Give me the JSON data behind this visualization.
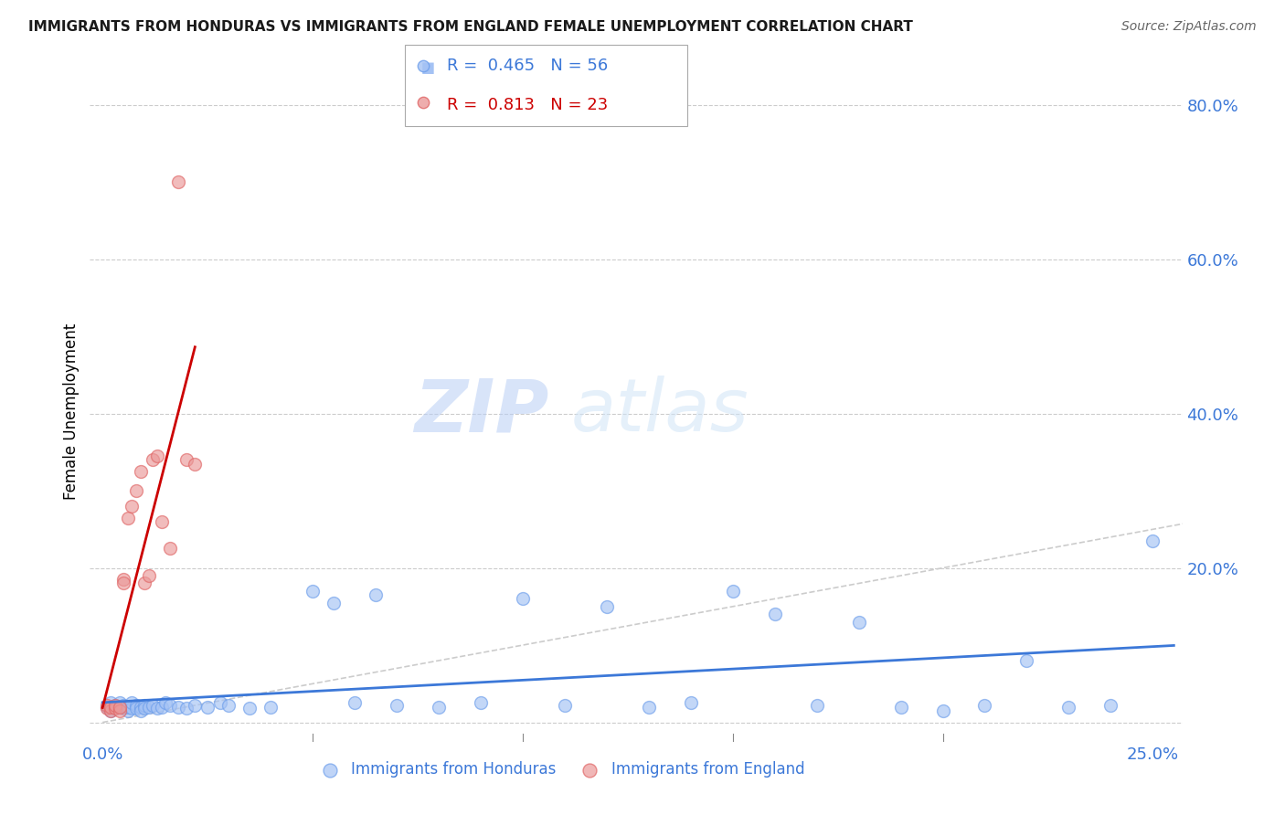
{
  "title": "IMMIGRANTS FROM HONDURAS VS IMMIGRANTS FROM ENGLAND FEMALE UNEMPLOYMENT CORRELATION CHART",
  "source": "Source: ZipAtlas.com",
  "ylabel": "Female Unemployment",
  "color_honduras": "#a4c2f4",
  "color_england": "#ea9999",
  "edge_honduras": "#6d9eeb",
  "edge_england": "#e06666",
  "trendline_color_honduras": "#3c78d8",
  "trendline_color_england": "#cc0000",
  "diagonal_color": "#cccccc",
  "R_honduras": 0.465,
  "N_honduras": 56,
  "R_england": 0.813,
  "N_england": 23,
  "xlim": [
    0.0,
    0.25
  ],
  "ylim": [
    0.0,
    0.8
  ],
  "yticks": [
    0.0,
    0.2,
    0.4,
    0.6,
    0.8
  ],
  "yticklabels": [
    "",
    "20.0%",
    "40.0%",
    "60.0%",
    "80.0%"
  ],
  "xtick_left": "0.0%",
  "xtick_right": "25.0%",
  "watermark_zip": "ZIP",
  "watermark_atlas": "atlas",
  "legend_label_honduras": "Immigrants from Honduras",
  "legend_label_england": "Immigrants from England",
  "honduras_x": [
    0.001,
    0.002,
    0.002,
    0.003,
    0.003,
    0.004,
    0.004,
    0.005,
    0.005,
    0.006,
    0.006,
    0.007,
    0.007,
    0.008,
    0.008,
    0.009,
    0.009,
    0.01,
    0.01,
    0.011,
    0.012,
    0.013,
    0.014,
    0.015,
    0.016,
    0.018,
    0.02,
    0.022,
    0.025,
    0.028,
    0.03,
    0.035,
    0.04,
    0.05,
    0.055,
    0.06,
    0.065,
    0.07,
    0.08,
    0.09,
    0.1,
    0.11,
    0.12,
    0.13,
    0.14,
    0.15,
    0.16,
    0.17,
    0.18,
    0.19,
    0.2,
    0.21,
    0.22,
    0.23,
    0.24,
    0.25
  ],
  "honduras_y": [
    0.02,
    0.025,
    0.015,
    0.022,
    0.018,
    0.02,
    0.025,
    0.018,
    0.022,
    0.015,
    0.02,
    0.018,
    0.025,
    0.022,
    0.018,
    0.02,
    0.015,
    0.022,
    0.018,
    0.02,
    0.022,
    0.018,
    0.02,
    0.025,
    0.022,
    0.02,
    0.018,
    0.022,
    0.02,
    0.025,
    0.022,
    0.018,
    0.02,
    0.17,
    0.155,
    0.025,
    0.165,
    0.022,
    0.02,
    0.025,
    0.16,
    0.022,
    0.15,
    0.02,
    0.025,
    0.17,
    0.14,
    0.022,
    0.13,
    0.02,
    0.015,
    0.022,
    0.08,
    0.02,
    0.022,
    0.235
  ],
  "england_x": [
    0.001,
    0.001,
    0.002,
    0.002,
    0.003,
    0.003,
    0.004,
    0.004,
    0.005,
    0.005,
    0.006,
    0.007,
    0.008,
    0.009,
    0.01,
    0.011,
    0.012,
    0.013,
    0.014,
    0.016,
    0.018,
    0.02,
    0.022
  ],
  "england_y": [
    0.018,
    0.022,
    0.015,
    0.02,
    0.018,
    0.022,
    0.015,
    0.02,
    0.185,
    0.18,
    0.265,
    0.28,
    0.3,
    0.325,
    0.18,
    0.19,
    0.34,
    0.345,
    0.26,
    0.225,
    0.7,
    0.34,
    0.335
  ]
}
